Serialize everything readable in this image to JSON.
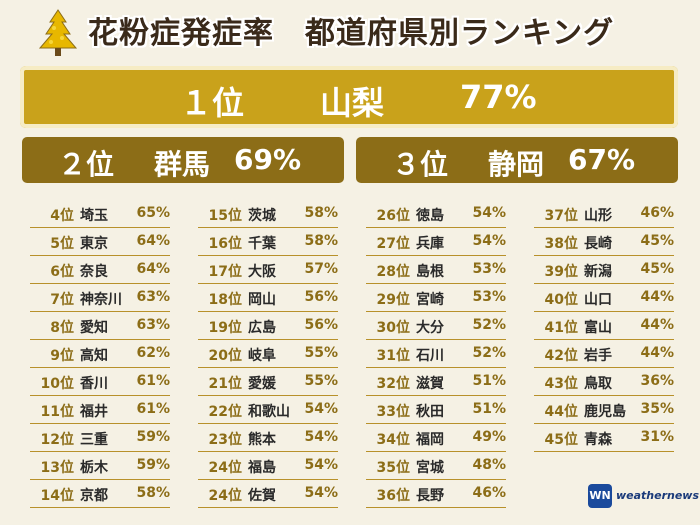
{
  "header": {
    "title": "花粉症発症率　都道府県別ランキング",
    "icon": "cedar-tree-icon"
  },
  "top3": [
    {
      "rank": "１位",
      "pref": "山梨",
      "pct": "77%"
    },
    {
      "rank": "２位",
      "pref": "群馬",
      "pct": "69%"
    },
    {
      "rank": "３位",
      "pref": "静岡",
      "pct": "67%"
    }
  ],
  "columns": [
    [
      {
        "rank": "4位",
        "pref": "埼玉",
        "pct": "65%"
      },
      {
        "rank": "5位",
        "pref": "東京",
        "pct": "64%"
      },
      {
        "rank": "6位",
        "pref": "奈良",
        "pct": "64%"
      },
      {
        "rank": "7位",
        "pref": "神奈川",
        "pct": "63%"
      },
      {
        "rank": "8位",
        "pref": "愛知",
        "pct": "63%"
      },
      {
        "rank": "9位",
        "pref": "高知",
        "pct": "62%"
      },
      {
        "rank": "10位",
        "pref": "香川",
        "pct": "61%"
      },
      {
        "rank": "11位",
        "pref": "福井",
        "pct": "61%"
      },
      {
        "rank": "12位",
        "pref": "三重",
        "pct": "59%"
      },
      {
        "rank": "13位",
        "pref": "栃木",
        "pct": "59%"
      },
      {
        "rank": "14位",
        "pref": "京都",
        "pct": "58%"
      }
    ],
    [
      {
        "rank": "15位",
        "pref": "茨城",
        "pct": "58%"
      },
      {
        "rank": "16位",
        "pref": "千葉",
        "pct": "58%"
      },
      {
        "rank": "17位",
        "pref": "大阪",
        "pct": "57%"
      },
      {
        "rank": "18位",
        "pref": "岡山",
        "pct": "56%"
      },
      {
        "rank": "19位",
        "pref": "広島",
        "pct": "56%"
      },
      {
        "rank": "20位",
        "pref": "岐阜",
        "pct": "55%"
      },
      {
        "rank": "21位",
        "pref": "愛媛",
        "pct": "55%"
      },
      {
        "rank": "22位",
        "pref": "和歌山",
        "pct": "54%"
      },
      {
        "rank": "23位",
        "pref": "熊本",
        "pct": "54%"
      },
      {
        "rank": "24位",
        "pref": "福島",
        "pct": "54%"
      },
      {
        "rank": "24位",
        "pref": "佐賀",
        "pct": "54%"
      }
    ],
    [
      {
        "rank": "26位",
        "pref": "徳島",
        "pct": "54%"
      },
      {
        "rank": "27位",
        "pref": "兵庫",
        "pct": "54%"
      },
      {
        "rank": "28位",
        "pref": "島根",
        "pct": "53%"
      },
      {
        "rank": "29位",
        "pref": "宮崎",
        "pct": "53%"
      },
      {
        "rank": "30位",
        "pref": "大分",
        "pct": "52%"
      },
      {
        "rank": "31位",
        "pref": "石川",
        "pct": "52%"
      },
      {
        "rank": "32位",
        "pref": "滋賀",
        "pct": "51%"
      },
      {
        "rank": "33位",
        "pref": "秋田",
        "pct": "51%"
      },
      {
        "rank": "34位",
        "pref": "福岡",
        "pct": "49%"
      },
      {
        "rank": "35位",
        "pref": "宮城",
        "pct": "48%"
      },
      {
        "rank": "36位",
        "pref": "長野",
        "pct": "46%"
      }
    ],
    [
      {
        "rank": "37位",
        "pref": "山形",
        "pct": "46%"
      },
      {
        "rank": "38位",
        "pref": "長崎",
        "pct": "45%"
      },
      {
        "rank": "39位",
        "pref": "新潟",
        "pct": "45%"
      },
      {
        "rank": "40位",
        "pref": "山口",
        "pct": "44%"
      },
      {
        "rank": "41位",
        "pref": "富山",
        "pct": "44%"
      },
      {
        "rank": "42位",
        "pref": "岩手",
        "pct": "44%"
      },
      {
        "rank": "43位",
        "pref": "鳥取",
        "pct": "36%"
      },
      {
        "rank": "44位",
        "pref": "鹿児島",
        "pct": "35%"
      },
      {
        "rank": "45位",
        "pref": "青森",
        "pct": "31%"
      }
    ]
  ],
  "logo": {
    "mark": "WN",
    "text": "weathernews"
  },
  "colors": {
    "gold": "#c9a21b",
    "dark_gold": "#8c6d17",
    "background": "#f5f1e4"
  },
  "chart_data": {
    "type": "table",
    "title": "花粉症発症率　都道府県別ランキング",
    "columns": [
      "rank",
      "prefecture",
      "percent"
    ],
    "rows": [
      [
        "1位",
        "山梨",
        77
      ],
      [
        "2位",
        "群馬",
        69
      ],
      [
        "3位",
        "静岡",
        67
      ],
      [
        "4位",
        "埼玉",
        65
      ],
      [
        "5位",
        "東京",
        64
      ],
      [
        "6位",
        "奈良",
        64
      ],
      [
        "7位",
        "神奈川",
        63
      ],
      [
        "8位",
        "愛知",
        63
      ],
      [
        "9位",
        "高知",
        62
      ],
      [
        "10位",
        "香川",
        61
      ],
      [
        "11位",
        "福井",
        61
      ],
      [
        "12位",
        "三重",
        59
      ],
      [
        "13位",
        "栃木",
        59
      ],
      [
        "14位",
        "京都",
        58
      ],
      [
        "15位",
        "茨城",
        58
      ],
      [
        "16位",
        "千葉",
        58
      ],
      [
        "17位",
        "大阪",
        57
      ],
      [
        "18位",
        "岡山",
        56
      ],
      [
        "19位",
        "広島",
        56
      ],
      [
        "20位",
        "岐阜",
        55
      ],
      [
        "21位",
        "愛媛",
        55
      ],
      [
        "22位",
        "和歌山",
        54
      ],
      [
        "23位",
        "熊本",
        54
      ],
      [
        "24位",
        "福島",
        54
      ],
      [
        "24位",
        "佐賀",
        54
      ],
      [
        "26位",
        "徳島",
        54
      ],
      [
        "27位",
        "兵庫",
        54
      ],
      [
        "28位",
        "島根",
        53
      ],
      [
        "29位",
        "宮崎",
        53
      ],
      [
        "30位",
        "大分",
        52
      ],
      [
        "31位",
        "石川",
        52
      ],
      [
        "32位",
        "滋賀",
        51
      ],
      [
        "33位",
        "秋田",
        51
      ],
      [
        "34位",
        "福岡",
        49
      ],
      [
        "35位",
        "宮城",
        48
      ],
      [
        "36位",
        "長野",
        46
      ],
      [
        "37位",
        "山形",
        46
      ],
      [
        "38位",
        "長崎",
        45
      ],
      [
        "39位",
        "新潟",
        45
      ],
      [
        "40位",
        "山口",
        44
      ],
      [
        "41位",
        "富山",
        44
      ],
      [
        "42位",
        "岩手",
        44
      ],
      [
        "43位",
        "鳥取",
        36
      ],
      [
        "44位",
        "鹿児島",
        35
      ],
      [
        "45位",
        "青森",
        31
      ]
    ]
  }
}
